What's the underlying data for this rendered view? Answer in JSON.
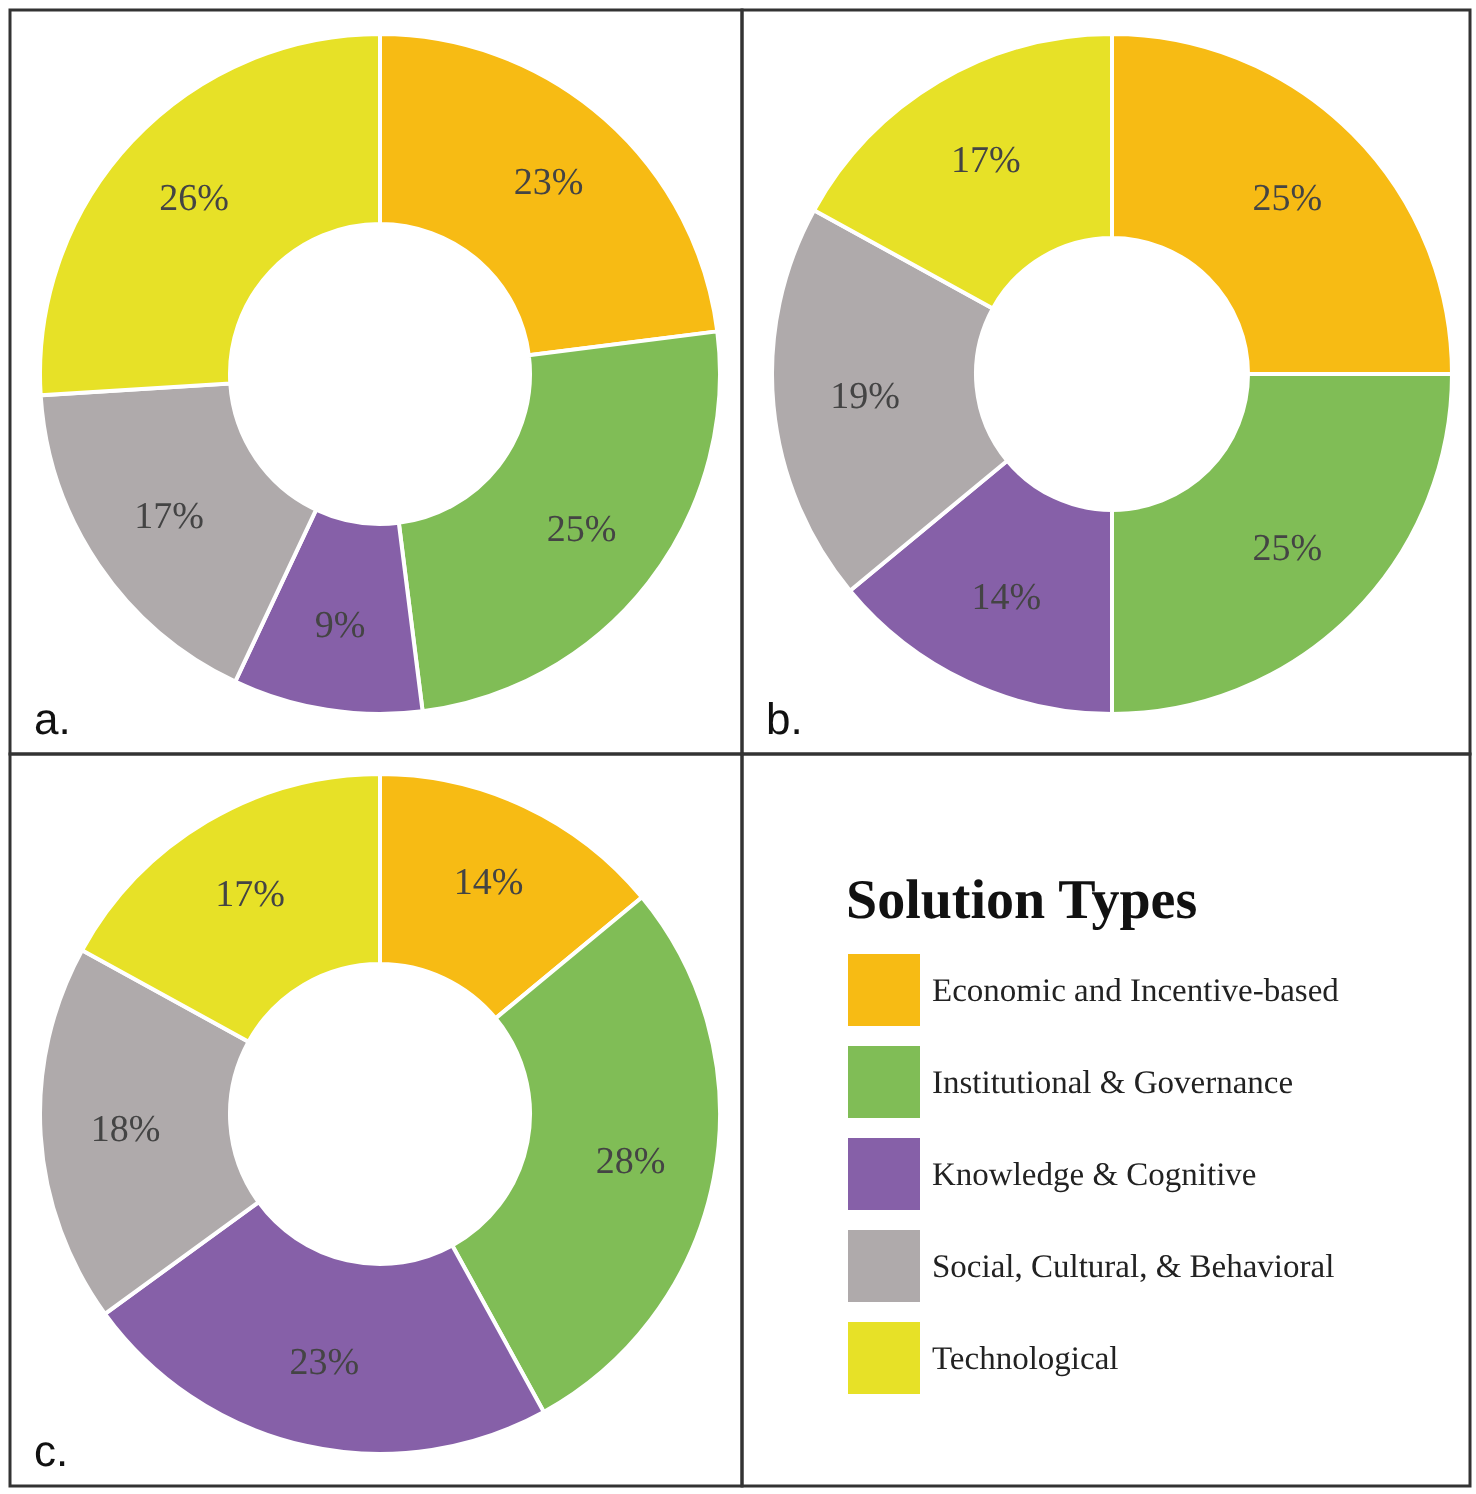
{
  "chart_data": [
    {
      "type": "donut",
      "values": [
        23,
        25,
        9,
        17,
        26
      ],
      "value_labels": [
        "23%",
        "25%",
        "9%",
        "17%",
        "26%"
      ],
      "colors": [
        "#f7bb14",
        "#80bd56",
        "#8660a8",
        "#afaaab",
        "#e7e127"
      ],
      "annotations": [
        "a."
      ]
    },
    {
      "type": "donut",
      "values": [
        25,
        25,
        14,
        19,
        17
      ],
      "value_labels": [
        "25%",
        "25%",
        "14%",
        "19%",
        "17%"
      ],
      "colors": [
        "#f7bb14",
        "#80bd56",
        "#8660a8",
        "#afaaab",
        "#e7e127"
      ],
      "annotations": [
        "b."
      ]
    },
    {
      "type": "donut",
      "categories": [
        "Economic and Incentive-based",
        "Institutional & Governance",
        "Knowledge & Cognitive",
        "Social, Cultural, & Behavioral",
        "Technological"
      ],
      "values": [
        14,
        28,
        23,
        18,
        17
      ],
      "value_labels": [
        "14%",
        "28%",
        "23%",
        "18%",
        "17%"
      ],
      "colors": [
        "#f7bb14",
        "#80bd56",
        "#8660a8",
        "#afaaab",
        "#e7e127"
      ],
      "annotations": [
        "c."
      ],
      "legend": "right",
      "legend_title": "Solution Types"
    }
  ]
}
